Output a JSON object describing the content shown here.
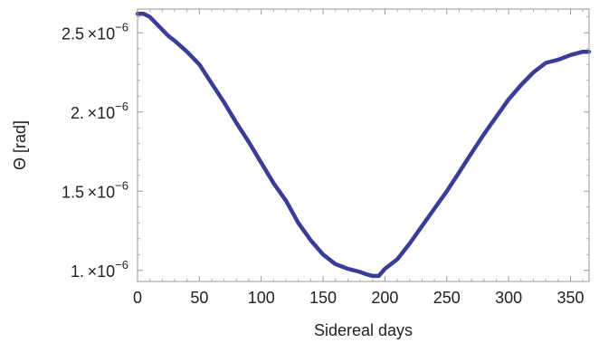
{
  "chart_data": {
    "type": "line",
    "title": "",
    "xlabel": "Sidereal days",
    "ylabel": "Θ  [rad]",
    "xlim": [
      0,
      365
    ],
    "ylim": [
      9.3e-07,
      2.65e-06
    ],
    "x_ticks": [
      0,
      50,
      100,
      150,
      200,
      250,
      300,
      350
    ],
    "x_tick_labels": [
      "0",
      "50",
      "100",
      "150",
      "200",
      "250",
      "300",
      "350"
    ],
    "y_ticks": [
      {
        "value": 1e-06,
        "mantissa": "1.",
        "base": "10",
        "exponent": "−6"
      },
      {
        "value": 1.5e-06,
        "mantissa": "1.5",
        "base": "10",
        "exponent": "−6"
      },
      {
        "value": 2e-06,
        "mantissa": "2.",
        "base": "10",
        "exponent": "−6"
      },
      {
        "value": 2.5e-06,
        "mantissa": "2.5",
        "base": "10",
        "exponent": "−6"
      }
    ],
    "times_symbol": "×",
    "grid": false,
    "line_color": "#3a3d96",
    "series": [
      {
        "x": [
          0,
          5,
          10,
          15,
          20,
          25,
          30,
          40,
          50,
          60,
          70,
          80,
          90,
          100,
          110,
          120,
          130,
          140,
          150,
          160,
          170,
          180,
          185,
          190,
          195,
          200,
          210,
          220,
          230,
          240,
          250,
          260,
          270,
          280,
          290,
          300,
          310,
          320,
          330,
          340,
          350,
          360,
          365
        ],
        "y": [
          2.62e-06,
          2.62e-06,
          2.6e-06,
          2.56e-06,
          2.52e-06,
          2.48e-06,
          2.45e-06,
          2.38e-06,
          2.3e-06,
          2.18e-06,
          2.06e-06,
          1.93e-06,
          1.81e-06,
          1.68e-06,
          1.55e-06,
          1.44e-06,
          1.3e-06,
          1.19e-06,
          1.1e-06,
          1.04e-06,
          1.01e-06,
          9.9e-07,
          9.75e-07,
          9.65e-07,
          9.65e-07,
          1.01e-06,
          1.07e-06,
          1.17e-06,
          1.28e-06,
          1.39e-06,
          1.5e-06,
          1.62e-06,
          1.74e-06,
          1.86e-06,
          1.97e-06,
          2.08e-06,
          2.17e-06,
          2.25e-06,
          2.31e-06,
          2.33e-06,
          2.36e-06,
          2.38e-06,
          2.38e-06
        ]
      }
    ]
  }
}
